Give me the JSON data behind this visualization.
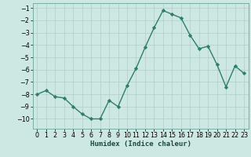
{
  "x": [
    0,
    1,
    2,
    3,
    4,
    5,
    6,
    7,
    8,
    9,
    10,
    11,
    12,
    13,
    14,
    15,
    16,
    17,
    18,
    19,
    20,
    21,
    22,
    23
  ],
  "y": [
    -8.0,
    -7.7,
    -8.2,
    -8.3,
    -9.0,
    -9.6,
    -10.0,
    -10.0,
    -8.5,
    -9.0,
    -7.3,
    -5.9,
    -4.2,
    -2.6,
    -1.2,
    -1.5,
    -1.8,
    -3.2,
    -4.3,
    -4.1,
    -5.6,
    -7.4,
    -5.7,
    -6.3
  ],
  "line_color": "#2e7d6e",
  "marker": "D",
  "markersize": 2.2,
  "linewidth": 1.0,
  "bg_color": "#cde8e2",
  "grid_color": "#b0cfc8",
  "xlabel": "Humidex (Indice chaleur)",
  "ylim": [
    -10.8,
    -0.6
  ],
  "xlim": [
    -0.5,
    23.5
  ],
  "yticks": [
    -10,
    -9,
    -8,
    -7,
    -6,
    -5,
    -4,
    -3,
    -2,
    -1
  ],
  "xticks": [
    0,
    1,
    2,
    3,
    4,
    5,
    6,
    7,
    8,
    9,
    10,
    11,
    12,
    13,
    14,
    15,
    16,
    17,
    18,
    19,
    20,
    21,
    22,
    23
  ],
  "xlabel_fontsize": 6.5,
  "tick_fontsize": 5.8
}
